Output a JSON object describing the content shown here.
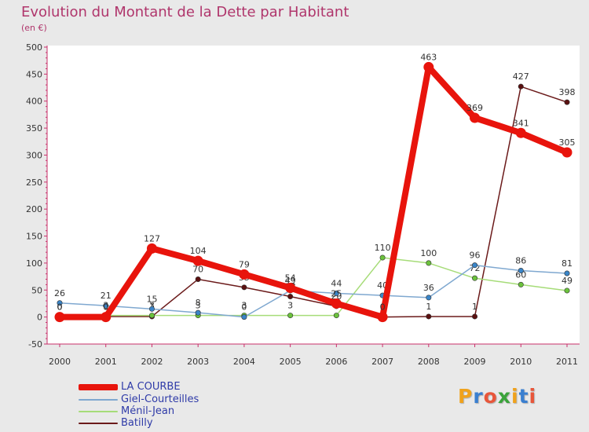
{
  "header": {
    "title": "Evolution du Montant de la Dette par Habitant",
    "subtitle": "(en €)"
  },
  "logo": {
    "text": "Proxiti",
    "letter_colors": [
      "#f0a21c",
      "#3a7fd0",
      "#e8563a",
      "#3aa33a",
      "#f0a21c",
      "#3a7fd0",
      "#e8563a"
    ]
  },
  "chart_data": {
    "type": "line",
    "title": "Evolution du Montant de la Dette par Habitant",
    "subtitle": "(en €)",
    "xlabel": "",
    "ylabel": "",
    "x": [
      "2000",
      "2001",
      "2002",
      "2003",
      "2004",
      "2005",
      "2006",
      "2007",
      "2008",
      "2009",
      "2010",
      "2011"
    ],
    "ylim": [
      -50,
      500
    ],
    "yticks": [
      -50,
      0,
      50,
      100,
      150,
      200,
      250,
      300,
      350,
      400,
      450,
      500
    ],
    "grid": false,
    "legend_position": "bottom-left",
    "series": [
      {
        "name": "Batilly",
        "color": "#6b1a1a",
        "point_color": "#5a1010",
        "values": [
          0,
          1,
          1,
          70,
          55,
          38,
          20,
          0,
          1,
          1,
          427,
          398
        ],
        "labels": [
          "0",
          "1",
          "1",
          "70",
          "55",
          "38",
          "20",
          "0",
          "1",
          "1",
          "427",
          "398"
        ]
      },
      {
        "name": "Ménil-Jean",
        "color": "#a6dc78",
        "point_color": "#6bc23c",
        "values": [
          0,
          3,
          3,
          3,
          3,
          3,
          3,
          110,
          100,
          72,
          60,
          49
        ],
        "labels": [
          "0",
          "3",
          "3",
          "3",
          "3",
          "3",
          "3",
          "110",
          "100",
          "72",
          "60",
          "49"
        ]
      },
      {
        "name": "Giel-Courteilles",
        "color": "#7fa8d0",
        "point_color": "#3a85c8",
        "values": [
          26,
          21,
          15,
          8,
          0,
          49,
          44,
          40,
          36,
          96,
          86,
          81
        ],
        "labels": [
          "26",
          "21",
          "15",
          "8",
          "0",
          "49",
          "44",
          "40",
          "36",
          "96",
          "86",
          "81"
        ]
      },
      {
        "name": "LA COURBE",
        "color": "#e8140c",
        "point_color": "#e8140c",
        "values": [
          0,
          0,
          127,
          104,
          79,
          54,
          25,
          0,
          463,
          369,
          341,
          305
        ],
        "labels": [
          "0",
          "0",
          "127",
          "104",
          "79",
          "54",
          "25",
          "0",
          "463",
          "369",
          "341",
          "305"
        ]
      }
    ],
    "legend": [
      {
        "name": "LA COURBE",
        "color": "#e8140c"
      },
      {
        "name": "Giel-Courteilles",
        "color": "#7fa8d0"
      },
      {
        "name": "Ménil-Jean",
        "color": "#a6dc78"
      },
      {
        "name": "Batilly",
        "color": "#6b1a1a"
      }
    ]
  }
}
